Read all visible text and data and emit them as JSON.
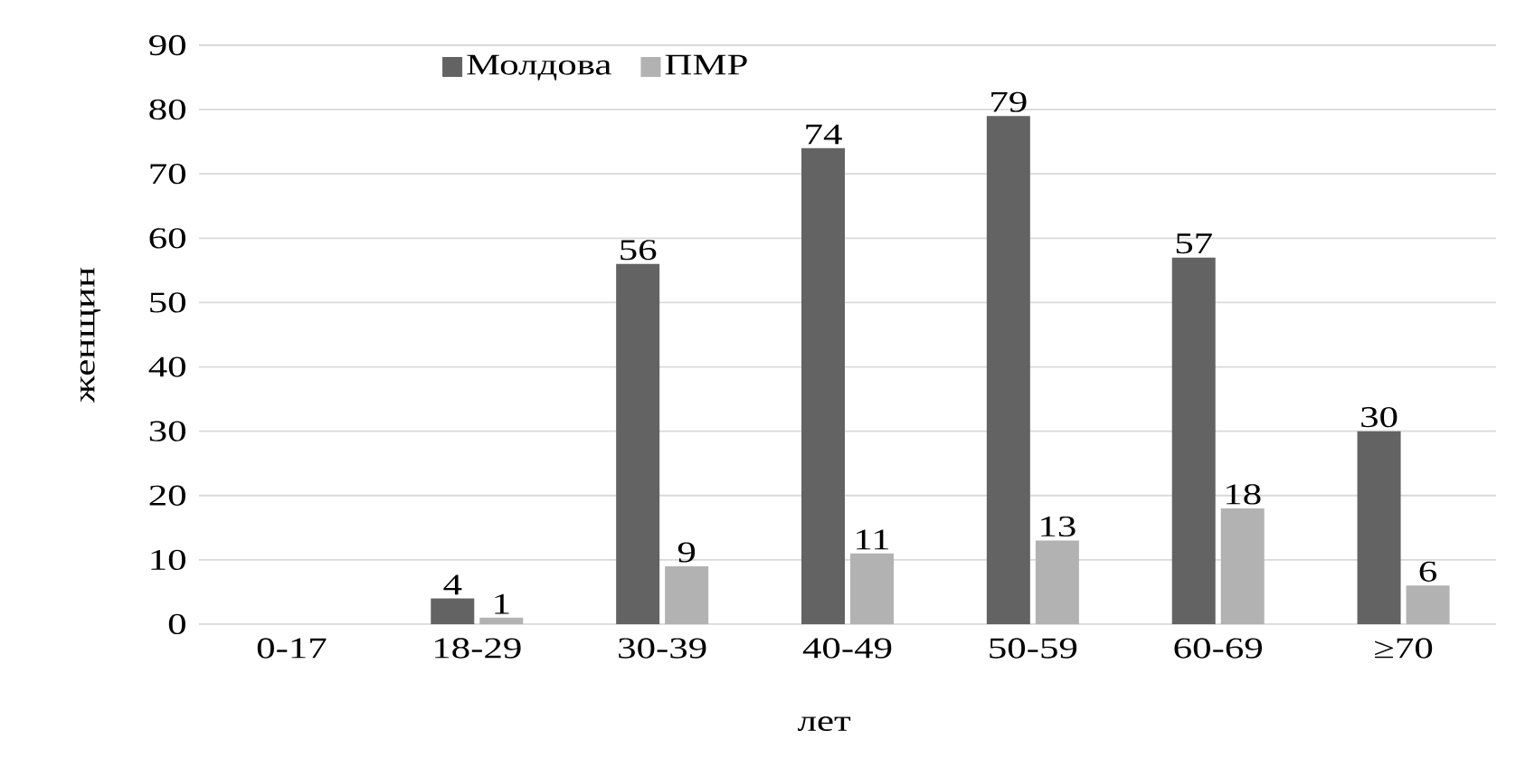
{
  "chart_data": {
    "type": "bar",
    "categories": [
      "0-17",
      "18-29",
      "30-39",
      "40-49",
      "50-59",
      "60-69",
      "≥70"
    ],
    "series": [
      {
        "name": "Молдова",
        "color": "#636363",
        "values": [
          null,
          4,
          56,
          74,
          79,
          57,
          30
        ]
      },
      {
        "name": "ПМР",
        "color": "#b2b2b2",
        "values": [
          null,
          1,
          9,
          11,
          13,
          18,
          6
        ]
      }
    ],
    "xlabel": "лет",
    "ylabel": "женщин",
    "ylim": [
      0,
      90
    ],
    "yticks": [
      0,
      10,
      20,
      30,
      40,
      50,
      60,
      70,
      80,
      90
    ],
    "grid": "y",
    "legend": "top",
    "data_labels": true
  }
}
